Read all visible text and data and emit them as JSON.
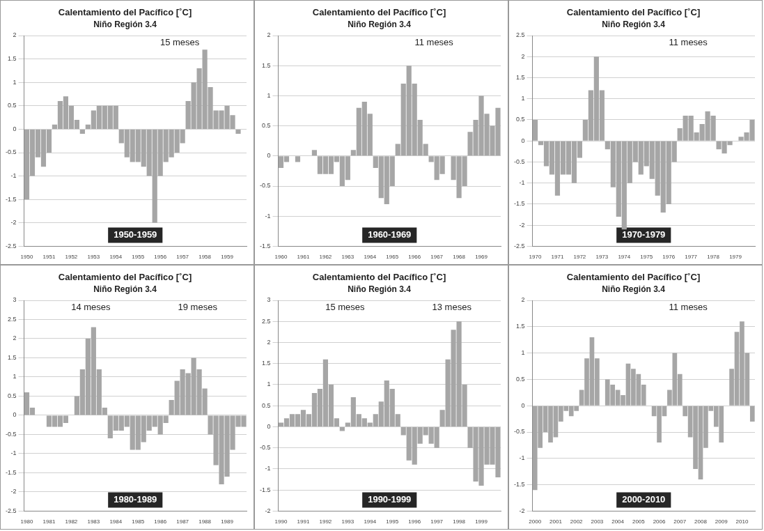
{
  "chart_data": [
    {
      "type": "bar",
      "title": "Calentamiento del Pacífico [˚C]",
      "subtitle": "Niño Región 3.4",
      "categories": [
        "1950",
        null,
        null,
        null,
        "1951",
        null,
        null,
        null,
        "1952",
        null,
        null,
        null,
        "1953",
        null,
        null,
        null,
        "1954",
        null,
        null,
        null,
        "1955",
        null,
        null,
        null,
        "1956",
        null,
        null,
        null,
        "1957",
        null,
        null,
        null,
        "1958",
        null,
        null,
        null,
        "1959",
        null,
        null,
        null
      ],
      "values": [
        -1.5,
        -1.0,
        -0.6,
        -0.8,
        -0.5,
        0.1,
        0.6,
        0.7,
        0.5,
        0.2,
        -0.1,
        0.1,
        0.4,
        0.5,
        0.5,
        0.5,
        0.5,
        -0.3,
        -0.6,
        -0.7,
        -0.7,
        -0.8,
        -1.0,
        -2.0,
        -1.0,
        -0.7,
        -0.6,
        -0.5,
        -0.3,
        0.6,
        1.0,
        1.3,
        1.7,
        0.9,
        0.4,
        0.4,
        0.5,
        0.3,
        -0.1,
        0.0
      ],
      "color": "#a6a6a6",
      "ylim": [
        -2.5,
        2
      ],
      "yticks": [
        -2.5,
        -2,
        -1.5,
        -1,
        -0.5,
        0,
        0.5,
        1,
        1.5,
        2
      ],
      "grid": "y",
      "annotations": [
        "15 meses",
        "1950-1959"
      ]
    },
    {
      "type": "bar",
      "title": "Calentamiento del Pacífico [˚C]",
      "subtitle": "Niño Región 3.4",
      "categories": [
        "1960",
        null,
        null,
        null,
        "1961",
        null,
        null,
        null,
        "1962",
        null,
        null,
        null,
        "1963",
        null,
        null,
        null,
        "1964",
        null,
        null,
        null,
        "1965",
        null,
        null,
        null,
        "1966",
        null,
        null,
        null,
        "1967",
        null,
        null,
        null,
        "1968",
        null,
        null,
        null,
        "1969",
        null,
        null,
        null
      ],
      "values": [
        -0.2,
        -0.1,
        0.0,
        -0.1,
        0.0,
        0.0,
        0.1,
        -0.3,
        -0.3,
        -0.3,
        -0.1,
        -0.5,
        -0.4,
        0.1,
        0.8,
        0.9,
        0.7,
        -0.2,
        -0.7,
        -0.8,
        -0.5,
        0.2,
        1.2,
        1.5,
        1.2,
        0.6,
        0.2,
        -0.1,
        -0.4,
        -0.3,
        0.0,
        -0.4,
        -0.7,
        -0.5,
        0.4,
        0.6,
        1.0,
        0.7,
        0.5,
        0.8
      ],
      "color": "#a6a6a6",
      "ylim": [
        -1.5,
        2
      ],
      "yticks": [
        -1.5,
        -1,
        -0.5,
        0,
        0.5,
        1,
        1.5,
        2
      ],
      "grid": "y",
      "annotations": [
        "11 meses",
        "1960-1969"
      ]
    },
    {
      "type": "bar",
      "title": "Calentamiento del Pacífico [˚C]",
      "subtitle": "Niño Región 3.4",
      "categories": [
        "1970",
        null,
        null,
        null,
        "1971",
        null,
        null,
        null,
        "1972",
        null,
        null,
        null,
        "1973",
        null,
        null,
        null,
        "1974",
        null,
        null,
        null,
        "1975",
        null,
        null,
        null,
        "1976",
        null,
        null,
        null,
        "1977",
        null,
        null,
        null,
        "1978",
        null,
        null,
        null,
        "1979",
        null,
        null,
        null
      ],
      "values": [
        0.5,
        -0.1,
        -0.6,
        -0.8,
        -1.3,
        -0.8,
        -0.8,
        -1.0,
        -0.4,
        0.5,
        1.2,
        2.0,
        1.2,
        -0.2,
        -1.1,
        -1.8,
        -2.1,
        -1.0,
        -0.5,
        -0.8,
        -0.6,
        -0.9,
        -1.3,
        -1.7,
        -1.5,
        -0.5,
        0.3,
        0.6,
        0.6,
        0.2,
        0.4,
        0.7,
        0.6,
        -0.2,
        -0.3,
        -0.1,
        0.0,
        0.1,
        0.2,
        0.5
      ],
      "color": "#a6a6a6",
      "ylim": [
        -2.5,
        2.5
      ],
      "yticks": [
        -2.5,
        -2,
        -1.5,
        -1,
        -0.5,
        0,
        0.5,
        1,
        1.5,
        2,
        2.5
      ],
      "grid": "y",
      "annotations": [
        "11 meses",
        "1970-1979"
      ]
    },
    {
      "type": "bar",
      "title": "Calentamiento del Pacífico [˚C]",
      "subtitle": "Niño Región 3.4",
      "categories": [
        "1980",
        null,
        null,
        null,
        "1981",
        null,
        null,
        null,
        "1982",
        null,
        null,
        null,
        "1983",
        null,
        null,
        null,
        "1984",
        null,
        null,
        null,
        "1985",
        null,
        null,
        null,
        "1986",
        null,
        null,
        null,
        "1987",
        null,
        null,
        null,
        "1988",
        null,
        null,
        null,
        "1989",
        null,
        null,
        null
      ],
      "values": [
        0.6,
        0.2,
        0.0,
        0.0,
        -0.3,
        -0.3,
        -0.3,
        -0.2,
        0.0,
        0.5,
        1.2,
        2.0,
        2.3,
        1.2,
        0.2,
        -0.6,
        -0.4,
        -0.4,
        -0.3,
        -0.9,
        -0.9,
        -0.7,
        -0.4,
        -0.3,
        -0.5,
        -0.2,
        0.4,
        0.9,
        1.2,
        1.1,
        1.5,
        1.2,
        0.7,
        -0.5,
        -1.3,
        -1.8,
        -1.6,
        -0.9,
        -0.3,
        -0.3
      ],
      "color": "#a6a6a6",
      "ylim": [
        -2.5,
        3
      ],
      "yticks": [
        -2.5,
        -2,
        -1.5,
        -1,
        -0.5,
        0,
        0.5,
        1,
        1.5,
        2,
        2.5,
        3
      ],
      "grid": "y",
      "annotations": [
        "14 meses",
        "19 meses",
        "1980-1989"
      ]
    },
    {
      "type": "bar",
      "title": "Calentamiento del Pacífico [˚C]",
      "subtitle": "Niño Región 3.4",
      "categories": [
        "1990",
        null,
        null,
        null,
        "1991",
        null,
        null,
        null,
        "1992",
        null,
        null,
        null,
        "1993",
        null,
        null,
        null,
        "1994",
        null,
        null,
        null,
        "1995",
        null,
        null,
        null,
        "1996",
        null,
        null,
        null,
        "1997",
        null,
        null,
        null,
        "1998",
        null,
        null,
        null,
        "1999",
        null,
        null,
        null
      ],
      "values": [
        0.1,
        0.2,
        0.3,
        0.3,
        0.4,
        0.3,
        0.8,
        0.9,
        1.6,
        1.0,
        0.2,
        -0.1,
        0.1,
        0.7,
        0.3,
        0.2,
        0.1,
        0.3,
        0.6,
        1.1,
        0.9,
        0.3,
        -0.2,
        -0.8,
        -0.9,
        -0.4,
        -0.2,
        -0.4,
        -0.5,
        0.4,
        1.6,
        2.3,
        2.5,
        1.0,
        -0.5,
        -1.3,
        -1.4,
        -0.9,
        -0.9,
        -1.2
      ],
      "color": "#a6a6a6",
      "ylim": [
        -2,
        3
      ],
      "yticks": [
        -2,
        -1.5,
        -1,
        -0.5,
        0,
        0.5,
        1,
        1.5,
        2,
        2.5,
        3
      ],
      "grid": "y",
      "annotations": [
        "15 meses",
        "13 meses",
        "1990-1999"
      ]
    },
    {
      "type": "bar",
      "title": "Calentamiento del Pacífico [˚C]",
      "subtitle": "Niño Región 3.4",
      "categories": [
        "2000",
        null,
        null,
        null,
        "2001",
        null,
        null,
        null,
        "2002",
        null,
        null,
        null,
        "2003",
        null,
        null,
        null,
        "2004",
        null,
        null,
        null,
        "2005",
        null,
        null,
        null,
        "2006",
        null,
        null,
        null,
        "2007",
        null,
        null,
        null,
        "2008",
        null,
        null,
        null,
        "2009",
        null,
        null,
        null,
        "2010",
        null,
        null
      ],
      "values": [
        -1.6,
        -0.8,
        -0.5,
        -0.7,
        -0.6,
        -0.3,
        -0.1,
        -0.2,
        -0.1,
        0.3,
        0.9,
        1.3,
        0.9,
        0.0,
        0.5,
        0.4,
        0.3,
        0.2,
        0.8,
        0.7,
        0.6,
        0.4,
        0.0,
        -0.2,
        -0.7,
        -0.2,
        0.3,
        1.0,
        0.6,
        -0.2,
        -0.6,
        -1.2,
        -1.4,
        -0.8,
        -0.1,
        -0.4,
        -0.7,
        0.0,
        0.7,
        1.4,
        1.6,
        1.0,
        -0.3
      ],
      "color": "#a6a6a6",
      "ylim": [
        -2,
        2
      ],
      "yticks": [
        -2,
        -1.5,
        -1,
        -0.5,
        0,
        0.5,
        1,
        1.5,
        2
      ],
      "grid": "y",
      "annotations": [
        "11 meses",
        "2000-2010"
      ]
    }
  ]
}
